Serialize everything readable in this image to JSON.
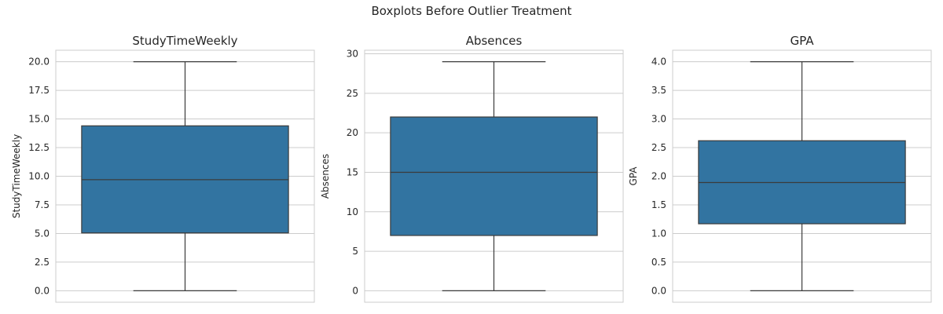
{
  "figure": {
    "title": "Boxplots Before Outlier Treatment"
  },
  "style": {
    "box_fill": "#3274a1",
    "line_color": "#3b3b3b",
    "grid_color": "#cccccc",
    "spine_color": "#cccccc"
  },
  "chart_data": [
    {
      "type": "boxplot",
      "title": "StudyTimeWeekly",
      "ylabel": "StudyTimeWeekly",
      "xlabel": "",
      "grid": true,
      "ylim": [
        -1.0,
        21.0
      ],
      "yticks": [
        0.0,
        2.5,
        5.0,
        7.5,
        10.0,
        12.5,
        15.0,
        17.5,
        20.0
      ],
      "ytick_labels": [
        "0.0",
        "2.5",
        "5.0",
        "7.5",
        "10.0",
        "12.5",
        "15.0",
        "17.5",
        "20.0"
      ],
      "box": {
        "whisker_low": 0.0,
        "q1": 5.05,
        "median": 9.7,
        "q3": 14.4,
        "whisker_high": 20.0
      }
    },
    {
      "type": "boxplot",
      "title": "Absences",
      "ylabel": "Absences",
      "xlabel": "",
      "grid": true,
      "ylim": [
        -1.45,
        30.45
      ],
      "yticks": [
        0,
        5,
        10,
        15,
        20,
        25,
        30
      ],
      "ytick_labels": [
        "0",
        "5",
        "10",
        "15",
        "20",
        "25",
        "30"
      ],
      "box": {
        "whisker_low": 0,
        "q1": 7,
        "median": 15,
        "q3": 22,
        "whisker_high": 29
      }
    },
    {
      "type": "boxplot",
      "title": "GPA",
      "ylabel": "GPA",
      "xlabel": "",
      "grid": true,
      "ylim": [
        -0.2,
        4.2
      ],
      "yticks": [
        0.0,
        0.5,
        1.0,
        1.5,
        2.0,
        2.5,
        3.0,
        3.5,
        4.0
      ],
      "ytick_labels": [
        "0.0",
        "0.5",
        "1.0",
        "1.5",
        "2.0",
        "2.5",
        "3.0",
        "3.5",
        "4.0"
      ],
      "box": {
        "whisker_low": 0.0,
        "q1": 1.17,
        "median": 1.89,
        "q3": 2.62,
        "whisker_high": 4.0
      }
    }
  ]
}
